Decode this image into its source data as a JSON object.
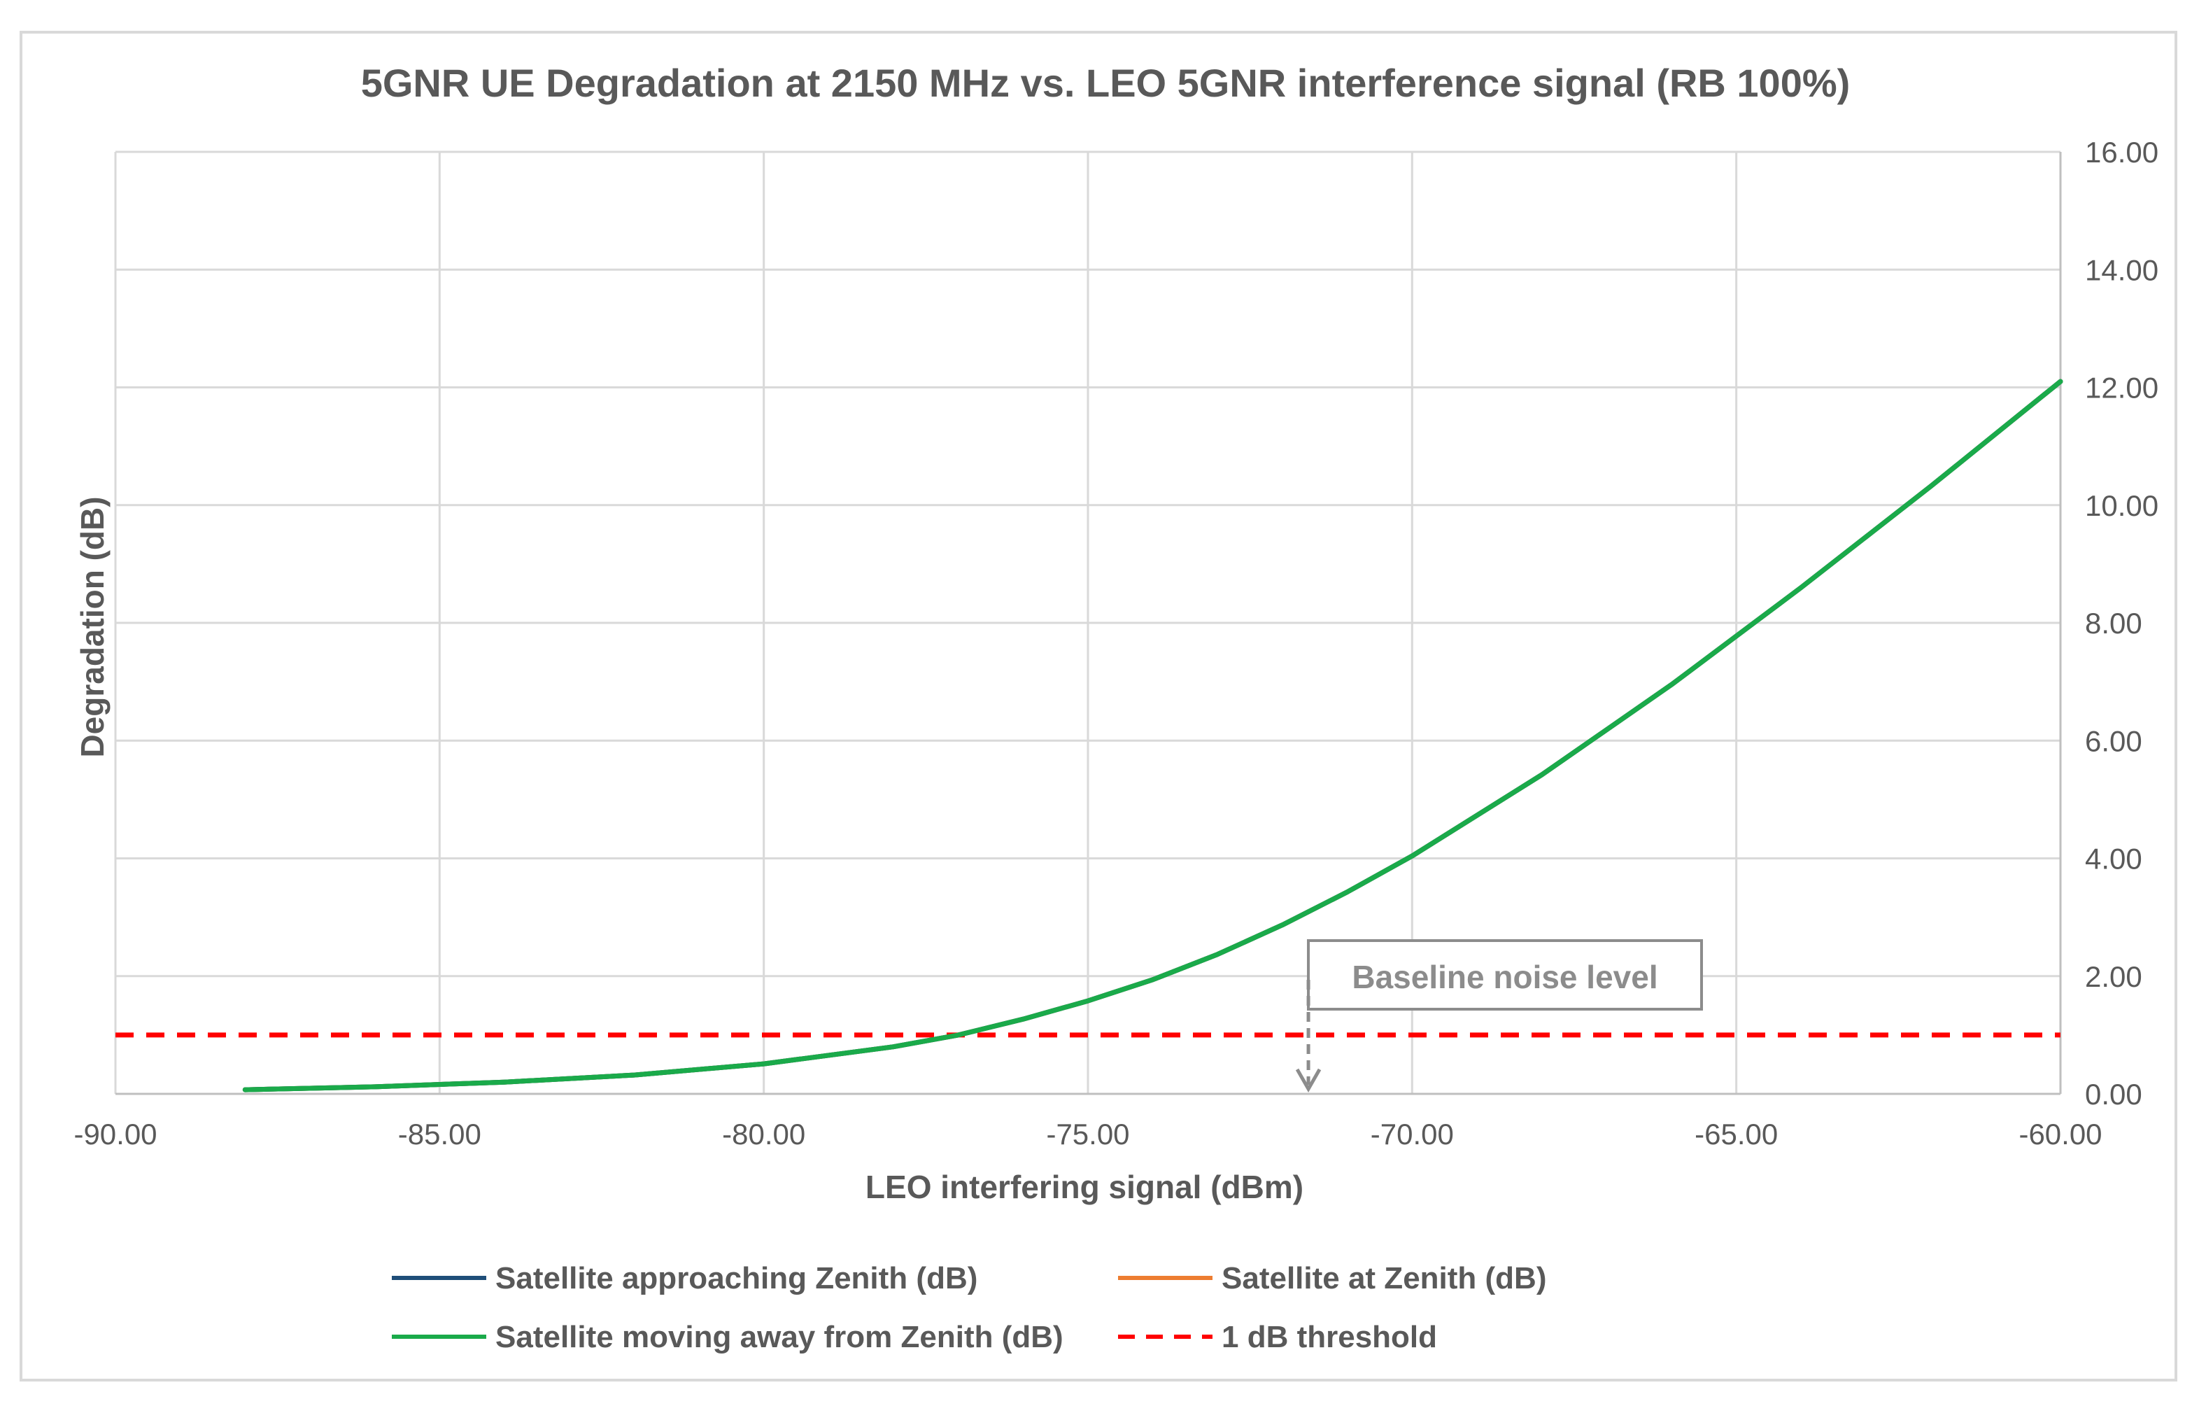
{
  "chart_data": {
    "type": "line",
    "title": "5GNR UE Degradation at 2150 MHz vs. LEO 5GNR interference signal (RB 100%)",
    "xlabel": "LEO interfering signal (dBm)",
    "ylabel": "Degradation (dB)",
    "xlim": [
      -90,
      -60
    ],
    "ylim": [
      0,
      16
    ],
    "x_ticks": [
      "-90.00",
      "-85.00",
      "-80.00",
      "-75.00",
      "-70.00",
      "-65.00",
      "-60.00"
    ],
    "y_ticks": [
      "0.00",
      "2.00",
      "4.00",
      "6.00",
      "8.00",
      "10.00",
      "12.00",
      "14.00",
      "16.00"
    ],
    "y_axis_side": "right",
    "grid": true,
    "legend_position": "bottom",
    "series": [
      {
        "name": "Satellite approaching Zenith (dB)",
        "color": "#1f4e79",
        "style": "solid",
        "x": [
          -88,
          -86,
          -84,
          -82,
          -80,
          -78,
          -77,
          -76,
          -75,
          -74,
          -73,
          -72,
          -71,
          -70,
          -68,
          -66,
          -64,
          -62,
          -60
        ],
        "y": [
          0.07,
          0.12,
          0.2,
          0.32,
          0.51,
          0.8,
          1.0,
          1.27,
          1.58,
          1.94,
          2.37,
          2.87,
          3.43,
          4.04,
          5.42,
          6.95,
          8.6,
          10.32,
          12.1
        ]
      },
      {
        "name": "Satellite at Zenith (dB)",
        "color": "#ed7d31",
        "style": "solid",
        "x": [
          -88,
          -86,
          -84,
          -82,
          -80,
          -78,
          -77,
          -76,
          -75,
          -74,
          -73,
          -72,
          -71,
          -70,
          -68,
          -66,
          -64,
          -62,
          -60
        ],
        "y": [
          0.07,
          0.12,
          0.2,
          0.32,
          0.51,
          0.8,
          1.0,
          1.27,
          1.58,
          1.94,
          2.37,
          2.87,
          3.43,
          4.04,
          5.42,
          6.95,
          8.6,
          10.32,
          12.1
        ]
      },
      {
        "name": "Satellite moving away from Zenith (dB)",
        "color": "#1aaa4a",
        "style": "solid",
        "x": [
          -88,
          -86,
          -84,
          -82,
          -80,
          -78,
          -77,
          -76,
          -75,
          -74,
          -73,
          -72,
          -71,
          -70,
          -68,
          -66,
          -64,
          -62,
          -60
        ],
        "y": [
          0.07,
          0.12,
          0.2,
          0.32,
          0.51,
          0.8,
          1.0,
          1.27,
          1.58,
          1.94,
          2.37,
          2.87,
          3.43,
          4.04,
          5.42,
          6.95,
          8.6,
          10.32,
          12.1
        ]
      },
      {
        "name": "1 dB threshold",
        "color": "#ff0000",
        "style": "dashed",
        "x": [
          -90,
          -60
        ],
        "y": [
          1,
          1
        ]
      }
    ],
    "annotations": [
      {
        "text": "Baseline noise level",
        "arrow_to_x": -71.6,
        "arrow_to_y": 0
      }
    ]
  }
}
